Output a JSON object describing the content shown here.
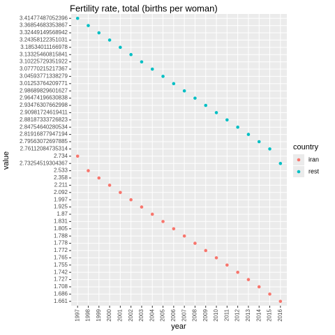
{
  "chart_data": {
    "type": "scatter",
    "title": "Fertility rate, total (births per woman)",
    "x_label": "year",
    "y_label": "value",
    "legend_title": "country",
    "x": [
      1997,
      1998,
      1999,
      2000,
      2001,
      2002,
      2003,
      2004,
      2005,
      2006,
      2007,
      2008,
      2009,
      2010,
      2011,
      2012,
      2013,
      2014,
      2015,
      2016
    ],
    "xlim": [
      1996.4,
      2016.6
    ],
    "xticks": [
      1997,
      1998,
      1999,
      2000,
      2001,
      2002,
      2003,
      2004,
      2005,
      2006,
      2007,
      2008,
      2009,
      2010,
      2011,
      2012,
      2013,
      2014,
      2015,
      2016
    ],
    "y_scale": "discrete",
    "yticks": [
      1.661,
      1.686,
      1.708,
      1.727,
      1.742,
      1.755,
      1.765,
      1.772,
      1.778,
      1.788,
      1.805,
      1.831,
      1.87,
      1.925,
      1.997,
      2.092,
      2.211,
      2.358,
      2.533,
      2.73254519304367,
      2.734,
      2.76112084735314,
      2.79563072697885,
      2.81916877947194,
      2.84754640280534,
      2.88187333726823,
      2.90981724619411,
      2.93476307662998,
      2.96474196630838,
      2.98689829601627,
      3.01253764209771,
      3.04593771338279,
      3.07770215217367,
      3.10225729351922,
      3.13325460815841,
      3.18534011166978,
      3.24358122351031,
      3.32449149568942,
      3.36854683353867,
      3.41477487052396
    ],
    "grid": true,
    "legend_position": "right",
    "series": [
      {
        "name": "iran",
        "color": "#F8766D",
        "values": [
          2.734,
          2.533,
          2.358,
          2.211,
          2.092,
          1.997,
          1.925,
          1.87,
          1.831,
          1.805,
          1.788,
          1.778,
          1.772,
          1.765,
          1.755,
          1.742,
          1.727,
          1.708,
          1.686,
          1.661
        ]
      },
      {
        "name": "rest",
        "color": "#00BFC4",
        "values": [
          3.41477487052396,
          3.36854683353867,
          3.32449149568942,
          3.24358122351031,
          3.18534011166978,
          3.13325460815841,
          3.10225729351922,
          3.07770215217367,
          3.04593771338279,
          3.01253764209771,
          2.98689829601627,
          2.96474196630838,
          2.93476307662998,
          2.90981724619411,
          2.88187333726823,
          2.84754640280534,
          2.81916877947194,
          2.79563072697885,
          2.76112084735314,
          2.73254519304367
        ]
      }
    ]
  }
}
